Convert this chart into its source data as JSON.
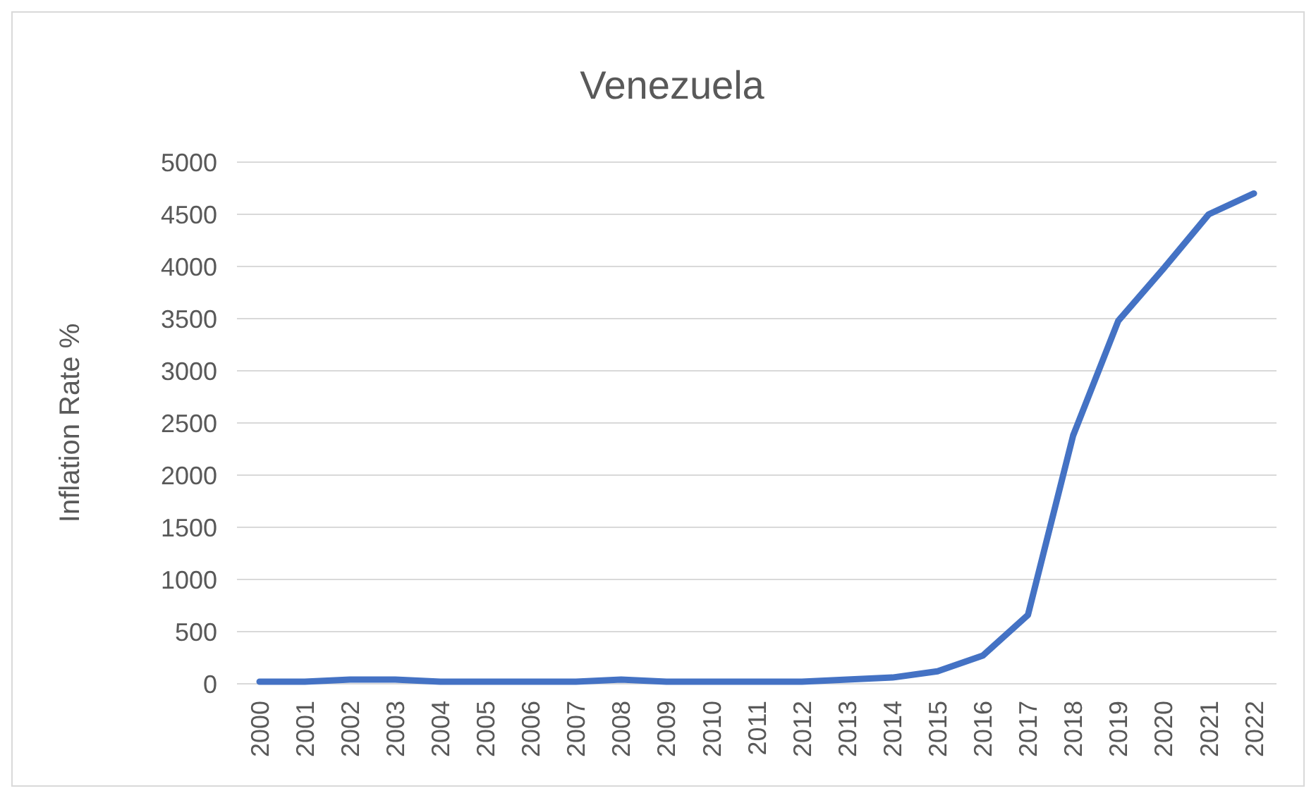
{
  "chart_data": {
    "type": "line",
    "title": "Venezuela",
    "ylabel": "Inflation Rate %",
    "categories": [
      "2000",
      "2001",
      "2002",
      "2003",
      "2004",
      "2005",
      "2006",
      "2007",
      "2008",
      "2009",
      "2010",
      "2011",
      "2012",
      "2013",
      "2014",
      "2015",
      "2016",
      "2017",
      "2018",
      "2019",
      "2020",
      "2021",
      "2022"
    ],
    "series": [
      {
        "color": "#4472c4",
        "values": [
          20,
          20,
          40,
          40,
          20,
          20,
          20,
          20,
          40,
          20,
          20,
          20,
          20,
          40,
          60,
          120,
          270,
          660,
          2380,
          3480,
          3980,
          4500,
          4700
        ]
      }
    ],
    "ylim": [
      0,
      5000
    ],
    "yticks": [
      0,
      500,
      1000,
      1500,
      2000,
      2500,
      3000,
      3500,
      4000,
      4500,
      5000
    ],
    "grid": "y",
    "marker": "none",
    "line_style": "solid"
  }
}
